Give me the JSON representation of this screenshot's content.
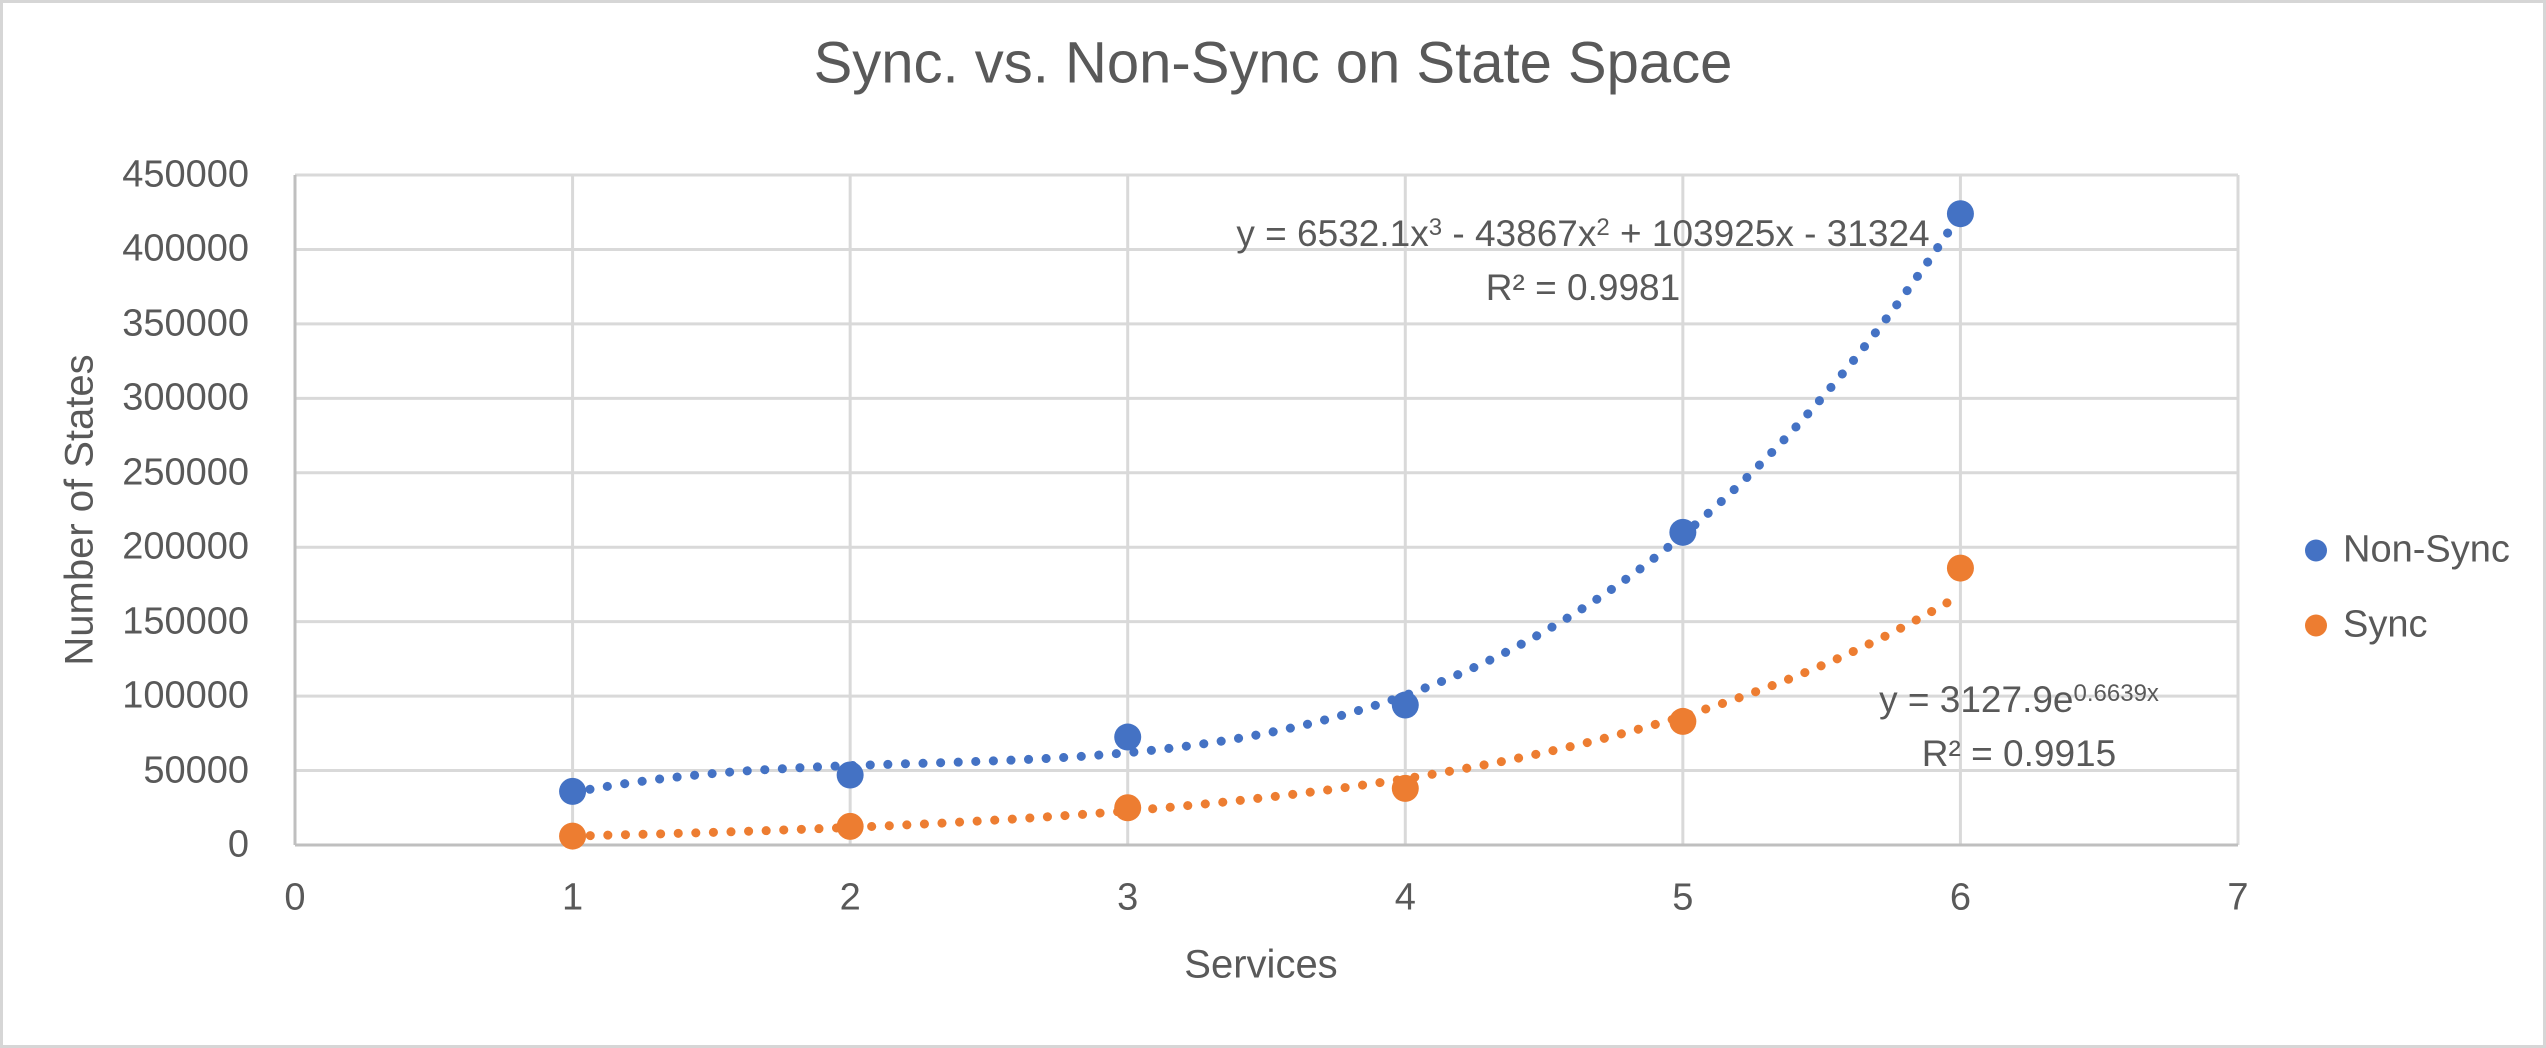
{
  "chart_data": {
    "type": "scatter",
    "title": "Sync. vs. Non-Sync on State Space",
    "xlabel": "Services",
    "ylabel": "Number of States",
    "xlim": [
      0,
      7
    ],
    "ylim": [
      0,
      450000
    ],
    "xticks": [
      0,
      1,
      2,
      3,
      4,
      5,
      6,
      7
    ],
    "yticks": [
      0,
      50000,
      100000,
      150000,
      200000,
      250000,
      300000,
      350000,
      400000,
      450000
    ],
    "grid": true,
    "legend_position": "right-center",
    "colors": {
      "grid": "#d9d9d9",
      "axis": "#bfbfbf",
      "text": "#595959"
    },
    "series": [
      {
        "name": "Non-Sync",
        "color": "#4472c4",
        "marker": "circle",
        "x": [
          1,
          2,
          3,
          4,
          5,
          6
        ],
        "y": [
          36000,
          47000,
          72500,
          94000,
          210000,
          424000
        ],
        "trendline": {
          "kind": "polynomial",
          "style": "dotted",
          "coefficients": [
            6532.1,
            -43867,
            103925,
            -31324
          ],
          "range": [
            1,
            6
          ],
          "equation_segments": [
            {
              "text": "y = 6532.1x"
            },
            {
              "text": "3",
              "sup": true
            },
            {
              "text": " - 43867x"
            },
            {
              "text": "2",
              "sup": true
            },
            {
              "text": " + 103925x - 31324"
            }
          ],
          "r_squared": "R² = 0.9981"
        }
      },
      {
        "name": "Sync",
        "color": "#ed7d31",
        "marker": "circle",
        "x": [
          1,
          2,
          3,
          4,
          5,
          6
        ],
        "y": [
          6000,
          12500,
          25000,
          38000,
          83000,
          186000
        ],
        "trendline": {
          "kind": "exponential",
          "style": "dotted",
          "a": 3127.9,
          "b": 0.6639,
          "range": [
            1,
            6
          ],
          "equation_segments": [
            {
              "text": "y = 3127.9e"
            },
            {
              "text": "0.6639x",
              "sup": true
            }
          ],
          "r_squared": "R² = 0.9915"
        }
      }
    ]
  }
}
